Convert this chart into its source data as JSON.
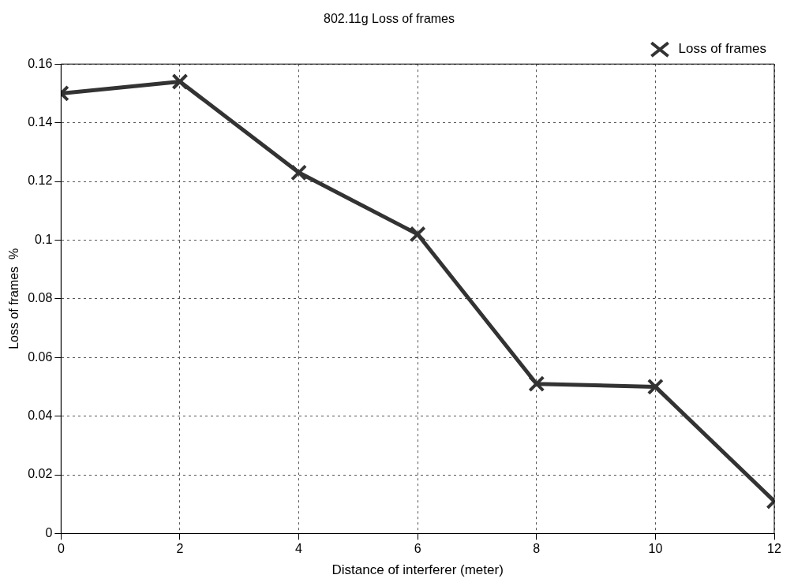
{
  "chart_data": {
    "type": "line",
    "title": "802.11g Loss of frames",
    "xlabel": "Distance of interferer (meter)",
    "ylabel": "Loss of frames  %",
    "x": [
      0,
      2,
      4,
      6,
      8,
      10,
      12
    ],
    "series": [
      {
        "name": "Loss of frames",
        "color": "#333333",
        "values": [
          0.15,
          0.154,
          0.123,
          0.102,
          0.051,
          0.05,
          0.011
        ]
      }
    ],
    "xlim": [
      0,
      12
    ],
    "xticks": [
      0,
      2,
      4,
      6,
      8,
      10,
      12
    ],
    "ylim": [
      0,
      0.16
    ],
    "yticks": [
      0,
      0.02,
      0.04,
      0.06,
      0.08,
      0.1,
      0.12,
      0.14,
      0.16
    ],
    "grid": true,
    "legend": "top right",
    "marker": "cross",
    "line_style": "solid"
  }
}
